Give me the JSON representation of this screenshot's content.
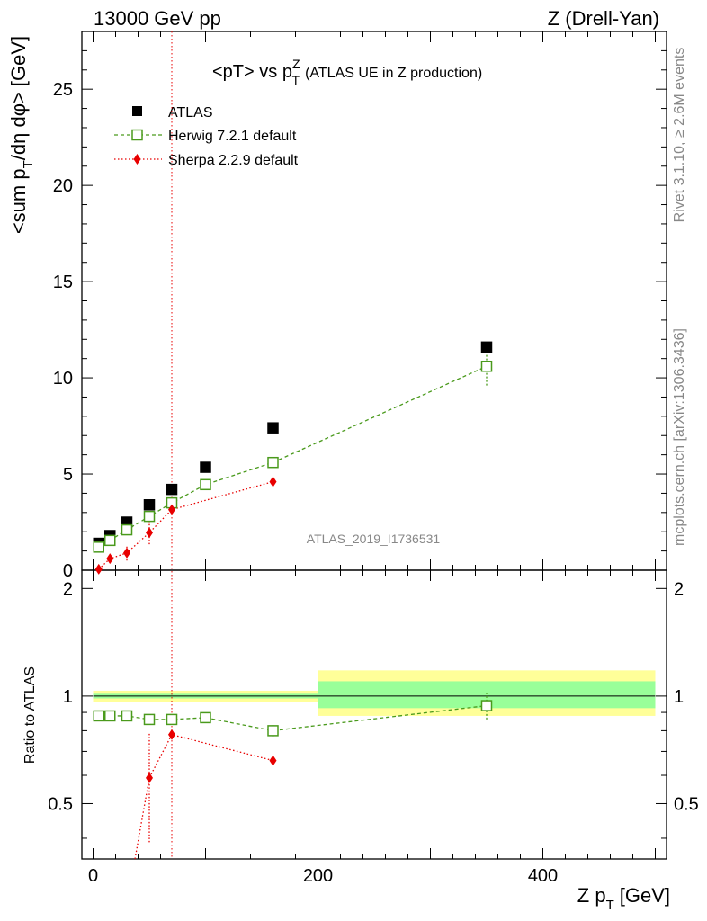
{
  "header": {
    "left": "13000 GeV pp",
    "right": "Z (Drell-Yan)"
  },
  "side": {
    "rivet": "Rivet 3.1.10, ≥ 2.6M events",
    "mcplots": "mcplots.cern.ch [arXiv:1306.3436]"
  },
  "chart_data": [
    {
      "type": "scatter",
      "title": "<pT> vs p_T^Z (ATLAS UE in Z production)",
      "title_main": "<pT> vs p",
      "title_sup": "Z",
      "title_sub": "T",
      "title_rest": "(ATLAS UE in Z production)",
      "analysis_label": "ATLAS_2019_I1736531",
      "ylabel": "<sum p_T/dη dφ> [GeV]",
      "ylabel_a": "<sum p",
      "ylabel_sub": "T",
      "ylabel_b": "/dη dφ> [GeV]",
      "xlim": [
        -10,
        510
      ],
      "ylim": [
        0,
        28
      ],
      "yticks": [
        "0",
        "5",
        "10",
        "15",
        "20",
        "25"
      ],
      "vlines": [
        70,
        160
      ],
      "legend_position": "top-left",
      "series": [
        {
          "name": "ATLAS",
          "color": "#000000",
          "marker": "filled-square",
          "x": [
            5,
            15,
            30,
            50,
            70,
            100,
            160,
            350
          ],
          "y": [
            1.4,
            1.8,
            2.5,
            3.4,
            4.2,
            5.35,
            7.4,
            11.6
          ]
        },
        {
          "name": "Herwig 7.2.1 default",
          "color": "#4a9a1c",
          "marker": "open-square",
          "line": "dashed",
          "x": [
            5,
            15,
            30,
            50,
            70,
            100,
            160,
            350
          ],
          "y": [
            1.2,
            1.55,
            2.1,
            2.8,
            3.5,
            4.45,
            5.6,
            10.6
          ],
          "yerr": [
            0,
            0,
            0,
            0,
            0,
            0,
            0,
            1.0
          ]
        },
        {
          "name": "Sherpa 2.2.9 default",
          "color": "#e80000",
          "marker": "diamond",
          "line": "dotted",
          "x": [
            5,
            15,
            30,
            50,
            70,
            160
          ],
          "y": [
            0.05,
            0.6,
            0.9,
            1.95,
            3.15,
            4.6
          ],
          "yerr": [
            0,
            0,
            0.4,
            0.6,
            0.3,
            0
          ]
        }
      ]
    },
    {
      "type": "scatter",
      "ylabel": "Ratio to ATLAS",
      "xlabel": "Z p_T [GeV]",
      "xlabel_a": "Z p",
      "xlabel_sub": "T",
      "xlabel_b": "[GeV]",
      "xlim": [
        -10,
        510
      ],
      "ylim": [
        0.35,
        2.25
      ],
      "yticks": [
        "0.5",
        "1",
        "2"
      ],
      "xticks": [
        "0",
        "200",
        "400"
      ],
      "bands": [
        {
          "x0": 0,
          "x1": 200,
          "yellow": [
            0.965,
            1.035
          ],
          "green": [
            0.985,
            1.015
          ]
        },
        {
          "x0": 200,
          "x1": 500,
          "yellow": [
            0.88,
            1.18
          ],
          "green": [
            0.925,
            1.1
          ]
        }
      ],
      "series": [
        {
          "name": "Herwig 7.2.1 default",
          "color": "#4a9a1c",
          "x": [
            5,
            15,
            30,
            50,
            70,
            100,
            160,
            350
          ],
          "y": [
            0.88,
            0.88,
            0.88,
            0.86,
            0.86,
            0.87,
            0.8,
            0.94
          ],
          "yerr": [
            0,
            0,
            0,
            0,
            0,
            0,
            0.03,
            0.08
          ]
        },
        {
          "name": "Sherpa 2.2.9 default",
          "color": "#e80000",
          "x": [
            50,
            70,
            160
          ],
          "y": [
            0.59,
            0.78,
            0.66
          ],
          "yerr": [
            0.2,
            0,
            0
          ],
          "offscale_from": [
            [
              30,
              0.26
            ],
            [
              50,
              0.59
            ]
          ]
        }
      ]
    }
  ]
}
